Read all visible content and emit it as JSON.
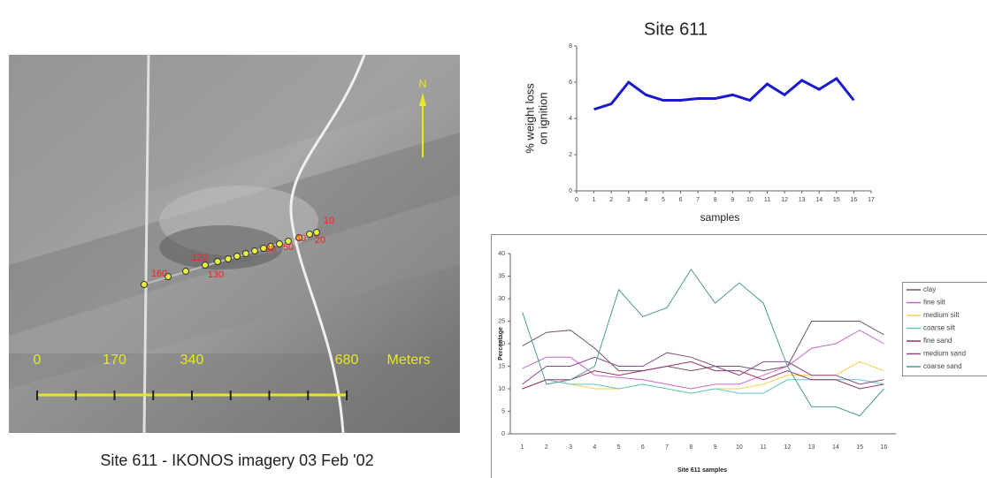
{
  "image": {
    "caption": "Site 611 - IKONOS imagery 03 Feb '02",
    "north": "N",
    "scale_labels": [
      0,
      170,
      340,
      680
    ],
    "scale_unit": "Meters",
    "point_labels": [
      "160",
      "130",
      "120",
      "50",
      "40",
      "30",
      "20",
      "10"
    ]
  },
  "chart_data": [
    {
      "type": "line",
      "title": "Site 611",
      "y_label": [
        "% weight loss",
        "on ignition"
      ],
      "x_label": "samples",
      "x": [
        1,
        2,
        3,
        4,
        5,
        6,
        7,
        8,
        9,
        10,
        11,
        12,
        13,
        14,
        15,
        16
      ],
      "series": [
        {
          "name": "% weight loss on ignition",
          "color": "#1a1acc",
          "values": [
            4.5,
            4.8,
            6.0,
            5.3,
            5.0,
            5.0,
            5.1,
            5.1,
            5.3,
            5.0,
            5.9,
            5.3,
            6.1,
            5.6,
            6.2,
            5.0
          ]
        }
      ],
      "xlim": [
        0,
        17
      ],
      "xticks": [
        0,
        1,
        2,
        3,
        4,
        5,
        6,
        7,
        8,
        9,
        10,
        11,
        12,
        13,
        14,
        15,
        16,
        17
      ],
      "ylim": [
        0,
        8
      ],
      "yticks": [
        0,
        2,
        4,
        6,
        8
      ],
      "grid": false,
      "legend": false
    },
    {
      "type": "line",
      "y_label": "Percentage",
      "x_label": "Site 611 samples",
      "categories": [
        "1",
        "2",
        "3",
        "4",
        "5",
        "6",
        "7",
        "8",
        "9",
        "10",
        "11",
        "12",
        "13",
        "14",
        "15",
        "16"
      ],
      "series": [
        {
          "name": "clay",
          "color": "#6e5566",
          "values": [
            19.5,
            22.5,
            23,
            19,
            14,
            14,
            15,
            14,
            15,
            15,
            14,
            15,
            25,
            25,
            25,
            22
          ]
        },
        {
          "name": "fine silt",
          "color": "#cc66cc",
          "values": [
            14.5,
            17,
            17,
            13,
            12.5,
            12,
            11,
            10,
            11,
            11,
            13,
            15,
            19,
            20,
            23,
            20
          ]
        },
        {
          "name": "medium silt",
          "color": "#f2d24a",
          "values": [
            10,
            12,
            11,
            10,
            10,
            11,
            10,
            9,
            10,
            10,
            11,
            13,
            13,
            13,
            16,
            14
          ]
        },
        {
          "name": "coarse silt",
          "color": "#5cc8c8",
          "values": [
            10,
            12,
            11,
            11,
            10,
            11,
            10,
            9,
            10,
            9,
            9,
            12,
            12,
            12,
            12,
            11
          ]
        },
        {
          "name": "fine sand",
          "color": "#993366",
          "values": [
            10,
            12,
            12,
            14,
            13,
            14,
            15,
            16,
            14,
            14,
            12,
            14,
            12,
            12,
            10,
            11
          ]
        },
        {
          "name": "medium sand",
          "color": "#844a88",
          "values": [
            11,
            15,
            15,
            17,
            15,
            15,
            18,
            17,
            15,
            13,
            16,
            16,
            13,
            13,
            11,
            12
          ]
        },
        {
          "name": "coarse sand",
          "color": "#4f9a94",
          "values": [
            27,
            11,
            12,
            15,
            32,
            26,
            28,
            36.5,
            29,
            33.5,
            29,
            15,
            6,
            6,
            4,
            10
          ]
        }
      ],
      "ylim": [
        0,
        40
      ],
      "yticks": [
        0,
        5,
        10,
        15,
        20,
        25,
        30,
        35,
        40
      ],
      "grid": false,
      "legend": "right"
    }
  ]
}
